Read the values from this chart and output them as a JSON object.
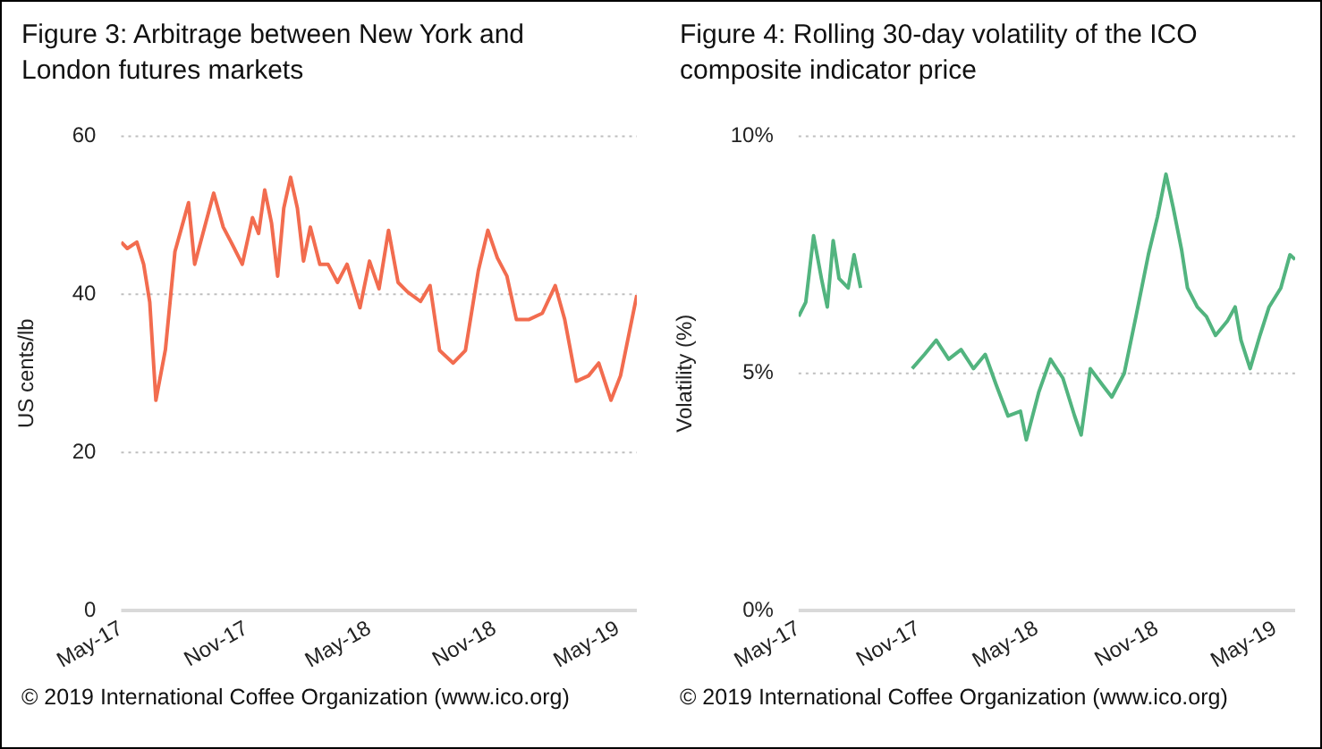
{
  "chart_data": [
    {
      "type": "line",
      "title": "Figure 3: Arbitrage between New York and London futures markets",
      "ylabel": "US cents/lb",
      "grid": "y",
      "x": [
        "2017-05-01",
        "2017-05-10",
        "2017-05-24",
        "2017-06-03",
        "2017-06-12",
        "2017-06-21",
        "2017-07-05",
        "2017-07-19",
        "2017-07-29",
        "2017-08-08",
        "2017-08-17",
        "2017-09-14",
        "2017-09-28",
        "2017-10-12",
        "2017-10-26",
        "2017-11-10",
        "2017-11-19",
        "2017-11-28",
        "2017-12-08",
        "2017-12-17",
        "2017-12-26",
        "2018-01-05",
        "2018-01-15",
        "2018-01-24",
        "2018-02-03",
        "2018-02-17",
        "2018-03-01",
        "2018-03-15",
        "2018-03-29",
        "2018-04-17",
        "2018-05-01",
        "2018-05-15",
        "2018-05-29",
        "2018-06-12",
        "2018-06-26",
        "2018-07-15",
        "2018-07-29",
        "2018-08-12",
        "2018-09-01",
        "2018-09-19",
        "2018-10-08",
        "2018-10-22",
        "2018-11-05",
        "2018-11-19",
        "2018-12-03",
        "2018-12-21",
        "2019-01-10",
        "2019-01-29",
        "2019-02-12",
        "2019-03-01",
        "2019-03-19",
        "2019-04-03",
        "2019-04-21",
        "2019-05-05",
        "2019-05-29"
      ],
      "series": [
        {
          "color": "#f26c4f",
          "values": [
            46.6,
            45.8,
            46.6,
            43.8,
            39,
            26.6,
            33,
            45.4,
            48.5,
            51.6,
            43.8,
            52.8,
            48.5,
            46.2,
            43.8,
            49.7,
            47.7,
            53.2,
            49,
            42.3,
            50.9,
            54.8,
            50.9,
            44.2,
            48.5,
            43.8,
            43.8,
            41.5,
            43.8,
            38.3,
            44.2,
            40.7,
            48.1,
            41.5,
            40.3,
            39.1,
            41.1,
            32.9,
            31.3,
            32.9,
            43,
            48.1,
            44.6,
            42.3,
            36.8,
            36.8,
            37.6,
            41.1,
            36.8,
            29,
            29.7,
            31.3,
            26.6,
            29.7,
            39.9
          ]
        }
      ],
      "xlim": [
        "2017-05-01",
        "2019-05-29"
      ],
      "xticks": [
        {
          "value": "2017-05-01",
          "label": "May-17"
        },
        {
          "value": "2017-11-01",
          "label": "Nov-17"
        },
        {
          "value": "2018-05-01",
          "label": "May-18"
        },
        {
          "value": "2018-11-01",
          "label": "Nov-18"
        },
        {
          "value": "2019-05-01",
          "label": "May-19"
        }
      ],
      "ylim": [
        0,
        60
      ],
      "yticks": [
        0,
        20,
        40,
        60
      ],
      "annotations": [
        "© 2019 International Coffee Organization (www.ico.org)"
      ]
    },
    {
      "type": "line",
      "title": "Figure 4: Rolling 30-day volatility of the ICO composite indicator price",
      "ylabel": "Volatility (%)",
      "grid": "y",
      "x": [
        "2017-05-01",
        "2017-05-12",
        "2017-05-24",
        "2017-06-05",
        "2017-06-14",
        "2017-06-23",
        "2017-07-02",
        "2017-07-16",
        "2017-07-25",
        "2017-08-04",
        "2017-09-15",
        "2017-10-22",
        "2017-11-10",
        "2017-11-28",
        "2017-12-17",
        "2018-01-05",
        "2018-01-24",
        "2018-02-11",
        "2018-02-28",
        "2018-03-18",
        "2018-04-06",
        "2018-04-15",
        "2018-05-04",
        "2018-05-22",
        "2018-06-10",
        "2018-06-28",
        "2018-07-08",
        "2018-07-22",
        "2018-08-10",
        "2018-08-24",
        "2018-09-12",
        "2018-09-30",
        "2018-10-19",
        "2018-11-02",
        "2018-11-15",
        "2018-11-26",
        "2018-12-09",
        "2018-12-18",
        "2019-01-02",
        "2019-01-16",
        "2019-01-30",
        "2019-02-17",
        "2019-03-01",
        "2019-03-10",
        "2019-03-24",
        "2019-04-08",
        "2019-04-22",
        "2019-05-10",
        "2019-05-24",
        "2019-06-01"
      ],
      "series": [
        {
          "color": "#52b47f",
          "values": [
            6.2,
            6.5,
            7.9,
            7.0,
            6.4,
            7.8,
            7.0,
            6.8,
            7.5,
            6.8,
            null,
            5.1,
            5.4,
            5.7,
            5.3,
            5.5,
            5.1,
            5.4,
            4.75,
            4.1,
            4.2,
            3.6,
            4.6,
            5.3,
            4.9,
            4.1,
            3.7,
            5.1,
            4.75,
            4.5,
            5.0,
            6.2,
            7.5,
            8.3,
            9.2,
            8.5,
            7.6,
            6.8,
            6.4,
            6.2,
            5.8,
            6.1,
            6.4,
            5.7,
            5.1,
            5.8,
            6.4,
            6.8,
            7.5,
            7.4
          ]
        }
      ],
      "xlim": [
        "2017-05-01",
        "2019-06-01"
      ],
      "xticks": [
        {
          "value": "2017-05-01",
          "label": "May-17"
        },
        {
          "value": "2017-11-01",
          "label": "Nov-17"
        },
        {
          "value": "2018-05-01",
          "label": "May-18"
        },
        {
          "value": "2018-11-01",
          "label": "Nov-18"
        },
        {
          "value": "2019-05-01",
          "label": "May-19"
        }
      ],
      "ylim": [
        0,
        10
      ],
      "yticks": [
        {
          "value": 0,
          "label": "0%"
        },
        {
          "value": 5,
          "label": "5%"
        },
        {
          "value": 10,
          "label": "10%"
        }
      ],
      "annotations": [
        "© 2019 International Coffee Organization (www.ico.org)"
      ]
    }
  ]
}
